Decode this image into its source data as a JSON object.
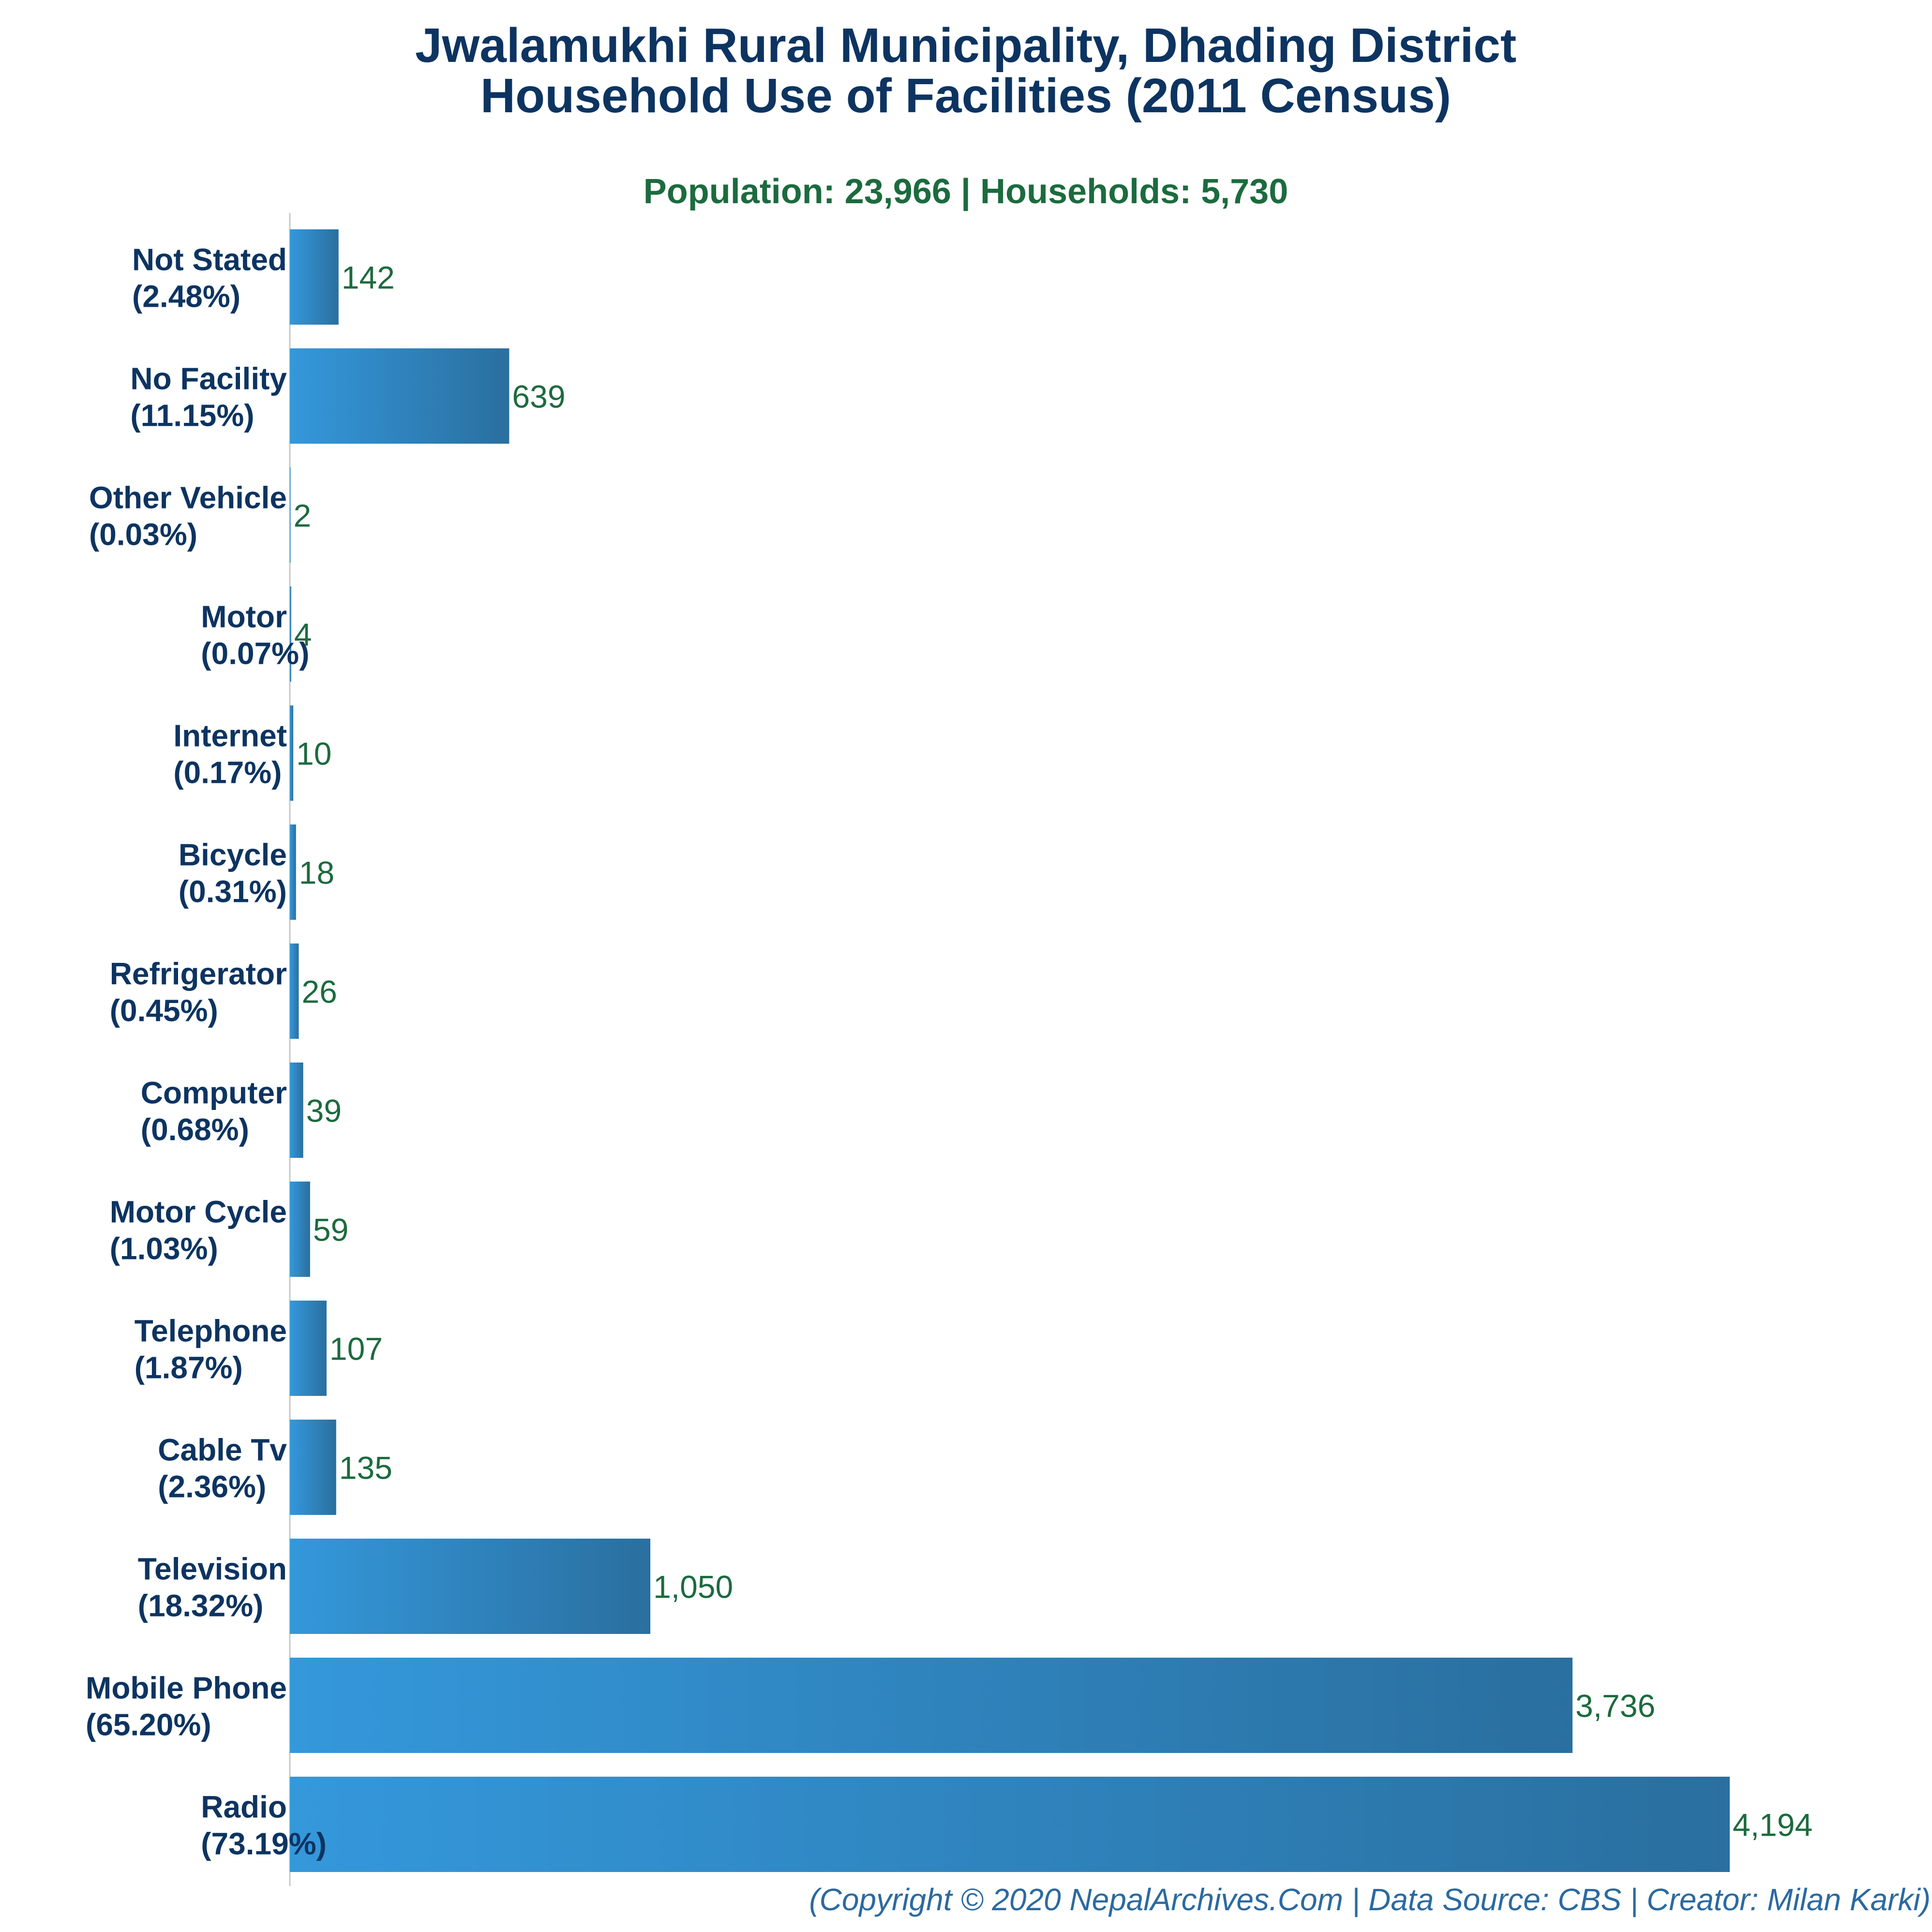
{
  "chart_data": {
    "type": "bar",
    "orientation": "horizontal",
    "title": [
      "Jwalamukhi Rural Municipality, Dhading District",
      "Household Use of Facilities (2011 Census)"
    ],
    "subtitle": "Population: 23,966 | Households: 5,730",
    "categories": [
      "Not Stated",
      "No Facility",
      "Other Vehicle",
      "Motor",
      "Internet",
      "Bicycle",
      "Refrigerator",
      "Computer",
      "Motor Cycle",
      "Telephone",
      "Cable Tv",
      "Television",
      "Mobile Phone",
      "Radio"
    ],
    "percent_labels": [
      "(2.48%)",
      "(11.15%)",
      "(0.03%)",
      "(0.07%)",
      "(0.17%)",
      "(0.31%)",
      "(0.45%)",
      "(0.68%)",
      "(1.03%)",
      "(1.87%)",
      "(2.36%)",
      "(18.32%)",
      "(65.20%)",
      "(73.19%)"
    ],
    "values": [
      142,
      639,
      2,
      4,
      10,
      18,
      26,
      39,
      59,
      107,
      135,
      1050,
      3736,
      4194
    ],
    "value_labels": [
      "142",
      "639",
      "2",
      "4",
      "10",
      "18",
      "26",
      "39",
      "59",
      "107",
      "135",
      "1,050",
      "3,736",
      "4,194"
    ],
    "xlim": [
      0,
      4194
    ],
    "grid": false,
    "colors": {
      "bar_light": "#3498db",
      "bar_dark": "#2a6f9f",
      "title": "#0d3461",
      "subtitle": "#1c6b3e",
      "value": "#1c6b3e",
      "footer": "#2b6aa0"
    }
  },
  "footer": "(Copyright © 2020 NepalArchives.Com | Data Source: CBS | Creator: Milan Karki)"
}
